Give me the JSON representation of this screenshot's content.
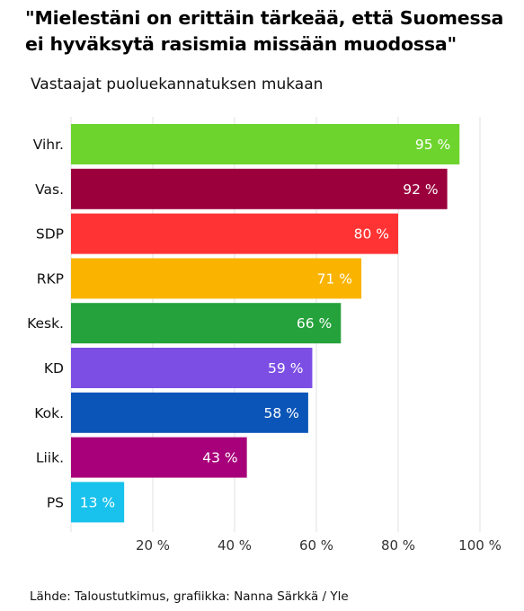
{
  "header": {
    "title": "\"Mielestäni on erittäin tärkeää, että Suomessa ei hyväksytä rasismia missään muodossa\"",
    "subtitle": "Vastaajat puoluekannatuksen mukaan"
  },
  "footer": {
    "source": "Lähde: Taloustutkimus, grafiikka: Nanna Särkkä / Yle"
  },
  "chart_data": {
    "type": "bar",
    "orientation": "horizontal",
    "title": "\"Mielestäni on erittäin tärkeää, että Suomessa ei hyväksytä rasismia missään muodossa\"",
    "subtitle": "Vastaajat puoluekannatuksen mukaan",
    "categories": [
      "Vihr.",
      "Vas.",
      "SDP",
      "RKP",
      "Kesk.",
      "KD",
      "Kok.",
      "Liik.",
      "PS"
    ],
    "values": [
      95,
      92,
      80,
      71,
      66,
      59,
      58,
      43,
      13
    ],
    "value_labels": [
      "95 %",
      "92 %",
      "80 %",
      "71 %",
      "66 %",
      "59 %",
      "58 %",
      "43 %",
      "13 %"
    ],
    "colors": [
      "#6dd42e",
      "#9b003c",
      "#ff3333",
      "#fab400",
      "#26a23c",
      "#7c4ee4",
      "#0b55b8",
      "#a8007a",
      "#18c2ec"
    ],
    "xlim": [
      0,
      100
    ],
    "xticks": [
      20,
      40,
      60,
      80,
      100
    ],
    "xtick_labels": [
      "20 %",
      "40 %",
      "60 %",
      "80 %",
      "100 %"
    ],
    "grid": true,
    "xlabel": "",
    "ylabel": ""
  }
}
